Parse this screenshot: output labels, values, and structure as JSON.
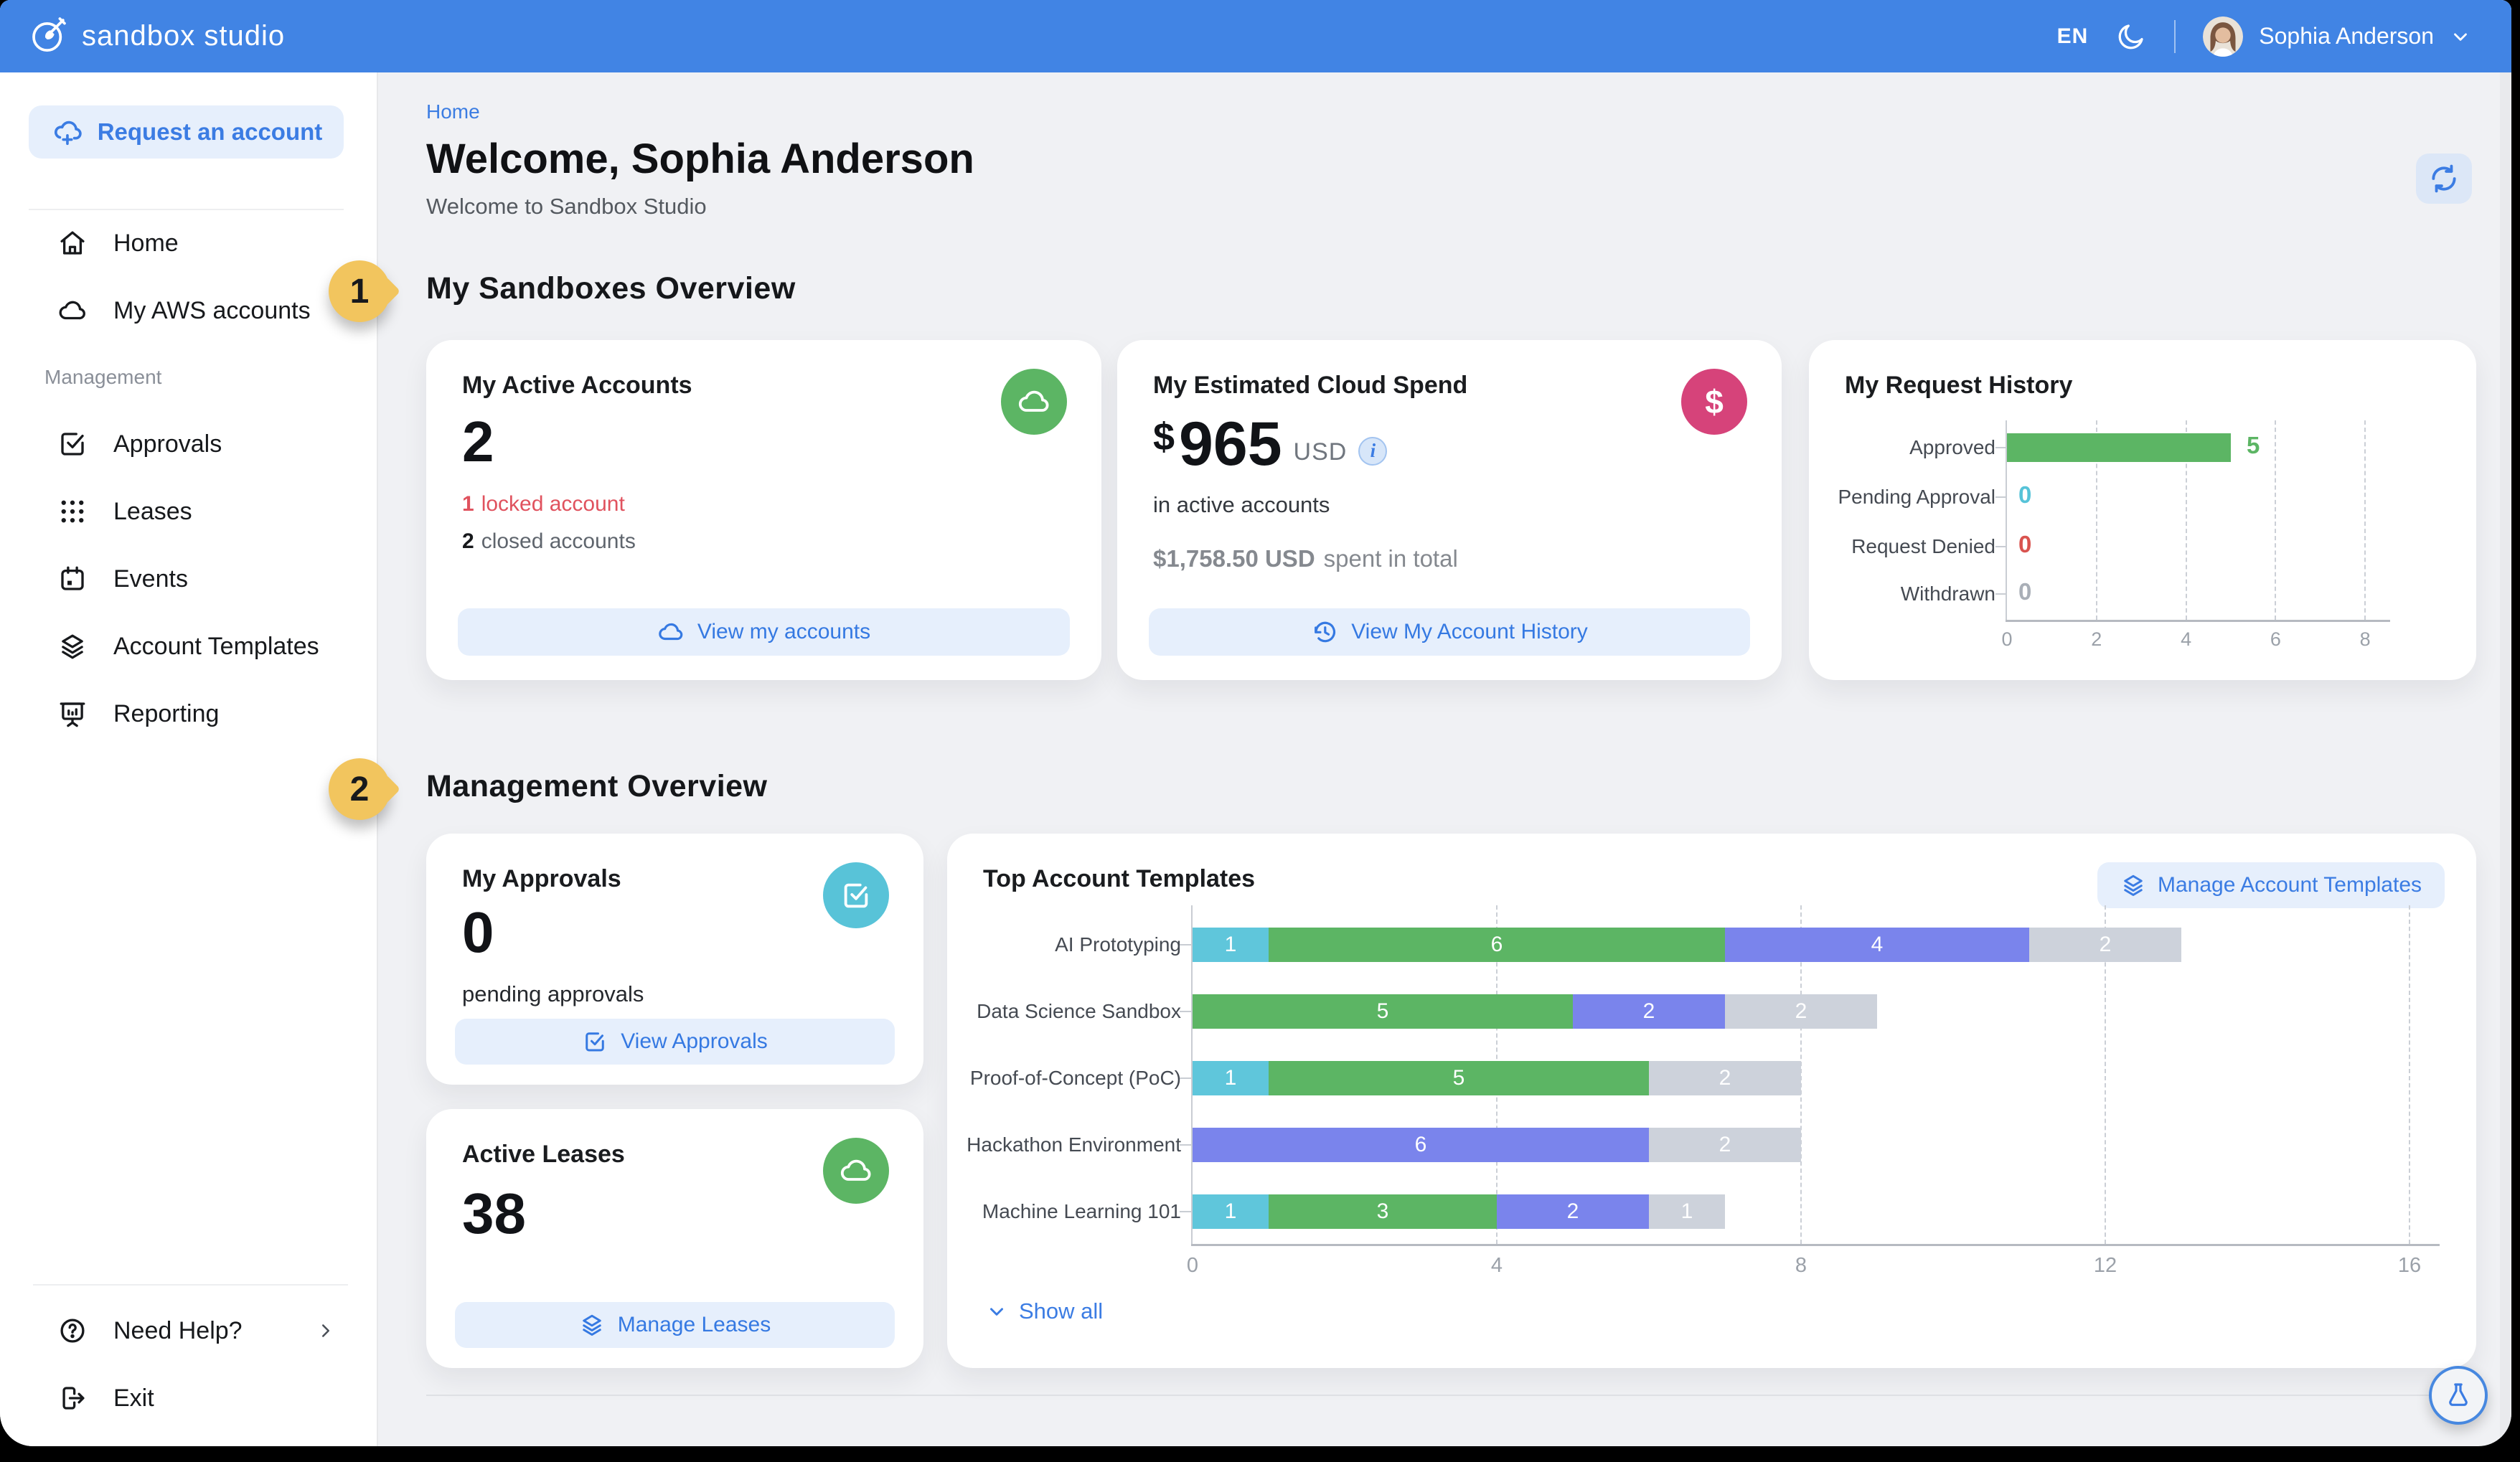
{
  "navbar": {
    "brand": "sandbox studio",
    "language": "EN",
    "user_name": "Sophia Anderson"
  },
  "sidebar": {
    "request_account_label": "Request an account",
    "items": [
      {
        "label": "Home"
      },
      {
        "label": "My AWS accounts"
      }
    ],
    "management_label": "Management",
    "management_items": [
      {
        "label": "Approvals"
      },
      {
        "label": "Leases"
      },
      {
        "label": "Events"
      },
      {
        "label": "Account Templates"
      },
      {
        "label": "Reporting"
      }
    ],
    "help_label": "Need Help?",
    "exit_label": "Exit"
  },
  "page": {
    "breadcrumb": "Home",
    "title": "Welcome, Sophia Anderson",
    "subtitle": "Welcome to Sandbox Studio"
  },
  "annotations": {
    "badges": [
      {
        "label": "1"
      },
      {
        "label": "2"
      }
    ]
  },
  "sections": {
    "sandboxes_title": "My Sandboxes Overview",
    "management_title": "Management Overview"
  },
  "cards": {
    "active_accounts": {
      "title": "My Active Accounts",
      "value": "2",
      "locked_count": "1",
      "locked_label": "locked account",
      "closed_count": "2",
      "closed_label": "closed accounts",
      "button_label": "View my accounts"
    },
    "cloud_spend": {
      "title": "My Estimated Cloud Spend",
      "currency_symbol": "$",
      "value": "965",
      "currency_code": "USD",
      "info_glyph": "i",
      "dollar_icon_glyph": "$",
      "subtitle": "in active accounts",
      "total_amount": "$1,758.50 USD",
      "total_label": "spent in total",
      "button_label": "View My Account History"
    },
    "request_history": {
      "title": "My Request History"
    },
    "approvals": {
      "title": "My Approvals",
      "value": "0",
      "subtitle": "pending approvals",
      "button_label": "View Approvals"
    },
    "leases": {
      "title": "Active Leases",
      "value": "38",
      "button_label": "Manage Leases"
    },
    "templates": {
      "title": "Top Account Templates",
      "manage_button_label": "Manage Account Templates",
      "show_all_label": "Show all"
    }
  },
  "chart_data": [
    {
      "id": "request_history",
      "type": "bar",
      "orientation": "horizontal",
      "title": "My Request History",
      "categories": [
        "Approved",
        "Pending Approval",
        "Request Denied",
        "Withdrawn"
      ],
      "values": [
        5,
        0,
        0,
        0
      ],
      "value_label_colors": [
        "#5CB564",
        "#56C3D8",
        "#D9534F",
        "#A9AFB7"
      ],
      "bar_color": "#5CB564",
      "xlabel": "",
      "ylabel": "",
      "xlim": [
        0,
        8
      ],
      "xticks": [
        0,
        2,
        4,
        6,
        8
      ],
      "grid": "dashed-vertical",
      "legend": "none"
    },
    {
      "id": "top_account_templates",
      "type": "stacked-bar",
      "orientation": "horizontal",
      "title": "Top Account Templates",
      "categories": [
        "AI Prototyping",
        "Data Science Sandbox",
        "Proof-of-Concept (PoC)",
        "Hackathon Environment",
        "Machine Learning 101"
      ],
      "series": [
        {
          "name": "segment-cyan",
          "color": "#5FC6DB",
          "values": [
            1,
            0,
            1,
            0,
            1
          ]
        },
        {
          "name": "segment-green",
          "color": "#5CB564",
          "values": [
            6,
            5,
            5,
            0,
            3
          ]
        },
        {
          "name": "segment-purple",
          "color": "#7A84EC",
          "values": [
            4,
            2,
            0,
            6,
            2
          ]
        },
        {
          "name": "segment-gray",
          "color": "#CDD2DB",
          "values": [
            2,
            2,
            2,
            2,
            1
          ]
        }
      ],
      "totals": [
        13,
        9,
        8,
        8,
        7
      ],
      "xlabel": "",
      "ylabel": "",
      "xlim": [
        0,
        16
      ],
      "xticks": [
        0,
        4,
        8,
        12,
        16
      ],
      "grid": "dashed-vertical",
      "legend": "none"
    }
  ],
  "colors": {
    "navbar": "#4184E4",
    "accent_blue": "#3B7CE3",
    "light_blue_bg": "#E6EFFC",
    "green": "#5CB564",
    "pink": "#D6437A",
    "teal": "#58C3D8",
    "red": "#E0525E",
    "badge_yellow": "#F2C55E"
  }
}
